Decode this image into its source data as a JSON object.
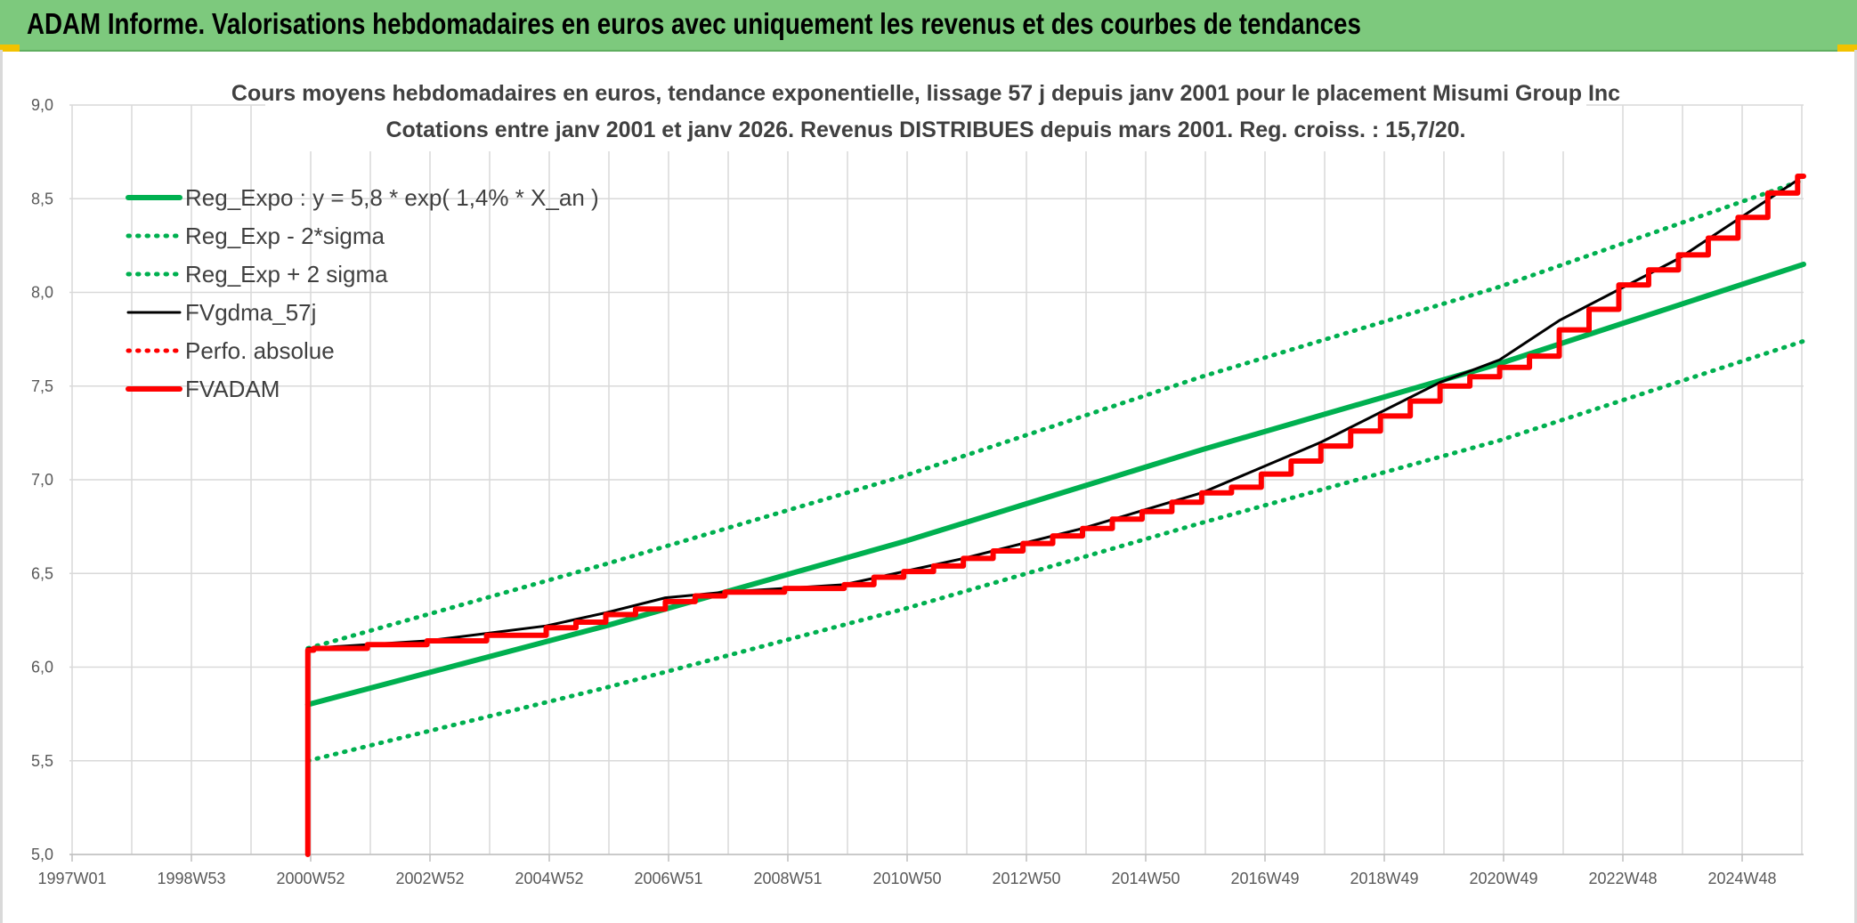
{
  "header": {
    "title": "ADAM Informe. Valorisations hebdomadaires en euros avec uniquement les revenus et des courbes de tendances"
  },
  "chart_data": {
    "type": "line",
    "title": "Cours moyens hebdomadaires en euros, tendance exponentielle, lissage 57 j depuis janv 2001 pour le placement Misumi Group Inc",
    "subtitle": "Cotations entre janv 2001 et janv 2026. Revenus DISTRIBUES depuis mars 2001. Reg. croiss. : 15,7/20.",
    "xlabel": "",
    "ylabel": "",
    "x_ticks": [
      "1997W01",
      "1998W53",
      "2000W52",
      "2002W52",
      "2004W52",
      "2006W51",
      "2008W51",
      "2010W50",
      "2012W50",
      "2014W50",
      "2016W49",
      "2018W49",
      "2020W49",
      "2022W48",
      "2024W48"
    ],
    "y_ticks": [
      "5,0",
      "5,5",
      "6,0",
      "6,5",
      "7,0",
      "7,5",
      "8,0",
      "8,5",
      "9,0"
    ],
    "xlim": [
      1997.0,
      2026.1
    ],
    "ylim": [
      5.0,
      9.0
    ],
    "grid": true,
    "legend_position": "top-left",
    "series": [
      {
        "name": "Reg_Expo : y = 5,8 * exp( 1,4% *  X_an )",
        "color": "#00b050",
        "style": "solid",
        "points": [
          [
            2001.0,
            5.8
          ],
          [
            2006.0,
            6.22
          ],
          [
            2011.0,
            6.67
          ],
          [
            2016.0,
            7.16
          ],
          [
            2021.0,
            7.62
          ],
          [
            2026.1,
            8.15
          ]
        ]
      },
      {
        "name": "Reg_Exp - 2*sigma",
        "color": "#00b050",
        "style": "dotted",
        "points": [
          [
            2001.0,
            5.5
          ],
          [
            2006.0,
            5.89
          ],
          [
            2011.0,
            6.31
          ],
          [
            2016.0,
            6.77
          ],
          [
            2021.0,
            7.21
          ],
          [
            2026.1,
            7.74
          ]
        ]
      },
      {
        "name": "Reg_Exp + 2 sigma",
        "color": "#00b050",
        "style": "dotted",
        "points": [
          [
            2001.0,
            6.1
          ],
          [
            2006.0,
            6.55
          ],
          [
            2011.0,
            7.02
          ],
          [
            2016.0,
            7.55
          ],
          [
            2021.0,
            8.03
          ],
          [
            2026.1,
            8.6
          ]
        ]
      },
      {
        "name": "FVgdma_57j",
        "color": "#000000",
        "style": "solid",
        "points": [
          [
            2001.0,
            6.1
          ],
          [
            2003.0,
            6.14
          ],
          [
            2005.0,
            6.22
          ],
          [
            2006.0,
            6.29
          ],
          [
            2007.0,
            6.37
          ],
          [
            2008.0,
            6.4
          ],
          [
            2010.0,
            6.44
          ],
          [
            2012.0,
            6.58
          ],
          [
            2014.0,
            6.74
          ],
          [
            2016.0,
            6.93
          ],
          [
            2018.0,
            7.2
          ],
          [
            2020.0,
            7.52
          ],
          [
            2021.0,
            7.64
          ],
          [
            2022.0,
            7.85
          ],
          [
            2024.0,
            8.18
          ],
          [
            2026.0,
            8.6
          ]
        ]
      },
      {
        "name": "Perfo. absolue",
        "color": "#ff0000",
        "style": "dotted",
        "points": []
      },
      {
        "name": "FVADAM",
        "color": "#ff0000",
        "style": "solid",
        "points": [
          [
            2001.0,
            5.0
          ],
          [
            2001.0,
            6.09
          ],
          [
            2001.1,
            6.1
          ],
          [
            2002.0,
            6.12
          ],
          [
            2003.0,
            6.14
          ],
          [
            2004.0,
            6.17
          ],
          [
            2005.0,
            6.21
          ],
          [
            2005.5,
            6.24
          ],
          [
            2006.0,
            6.28
          ],
          [
            2006.5,
            6.31
          ],
          [
            2007.0,
            6.35
          ],
          [
            2007.5,
            6.38
          ],
          [
            2008.0,
            6.4
          ],
          [
            2009.0,
            6.42
          ],
          [
            2010.0,
            6.44
          ],
          [
            2010.5,
            6.48
          ],
          [
            2011.0,
            6.51
          ],
          [
            2011.5,
            6.54
          ],
          [
            2012.0,
            6.58
          ],
          [
            2012.5,
            6.62
          ],
          [
            2013.0,
            6.66
          ],
          [
            2013.5,
            6.7
          ],
          [
            2014.0,
            6.74
          ],
          [
            2014.5,
            6.79
          ],
          [
            2015.0,
            6.83
          ],
          [
            2015.5,
            6.88
          ],
          [
            2016.0,
            6.93
          ],
          [
            2016.5,
            6.96
          ],
          [
            2017.0,
            7.03
          ],
          [
            2017.5,
            7.1
          ],
          [
            2018.0,
            7.18
          ],
          [
            2018.5,
            7.26
          ],
          [
            2019.0,
            7.34
          ],
          [
            2019.5,
            7.42
          ],
          [
            2020.0,
            7.5
          ],
          [
            2020.5,
            7.55
          ],
          [
            2021.0,
            7.6
          ],
          [
            2021.5,
            7.66
          ],
          [
            2022.0,
            7.8
          ],
          [
            2022.5,
            7.91
          ],
          [
            2023.0,
            8.04
          ],
          [
            2023.5,
            8.12
          ],
          [
            2024.0,
            8.2
          ],
          [
            2024.5,
            8.29
          ],
          [
            2025.0,
            8.4
          ],
          [
            2025.5,
            8.53
          ],
          [
            2026.0,
            8.62
          ],
          [
            2026.1,
            8.62
          ]
        ]
      }
    ]
  }
}
